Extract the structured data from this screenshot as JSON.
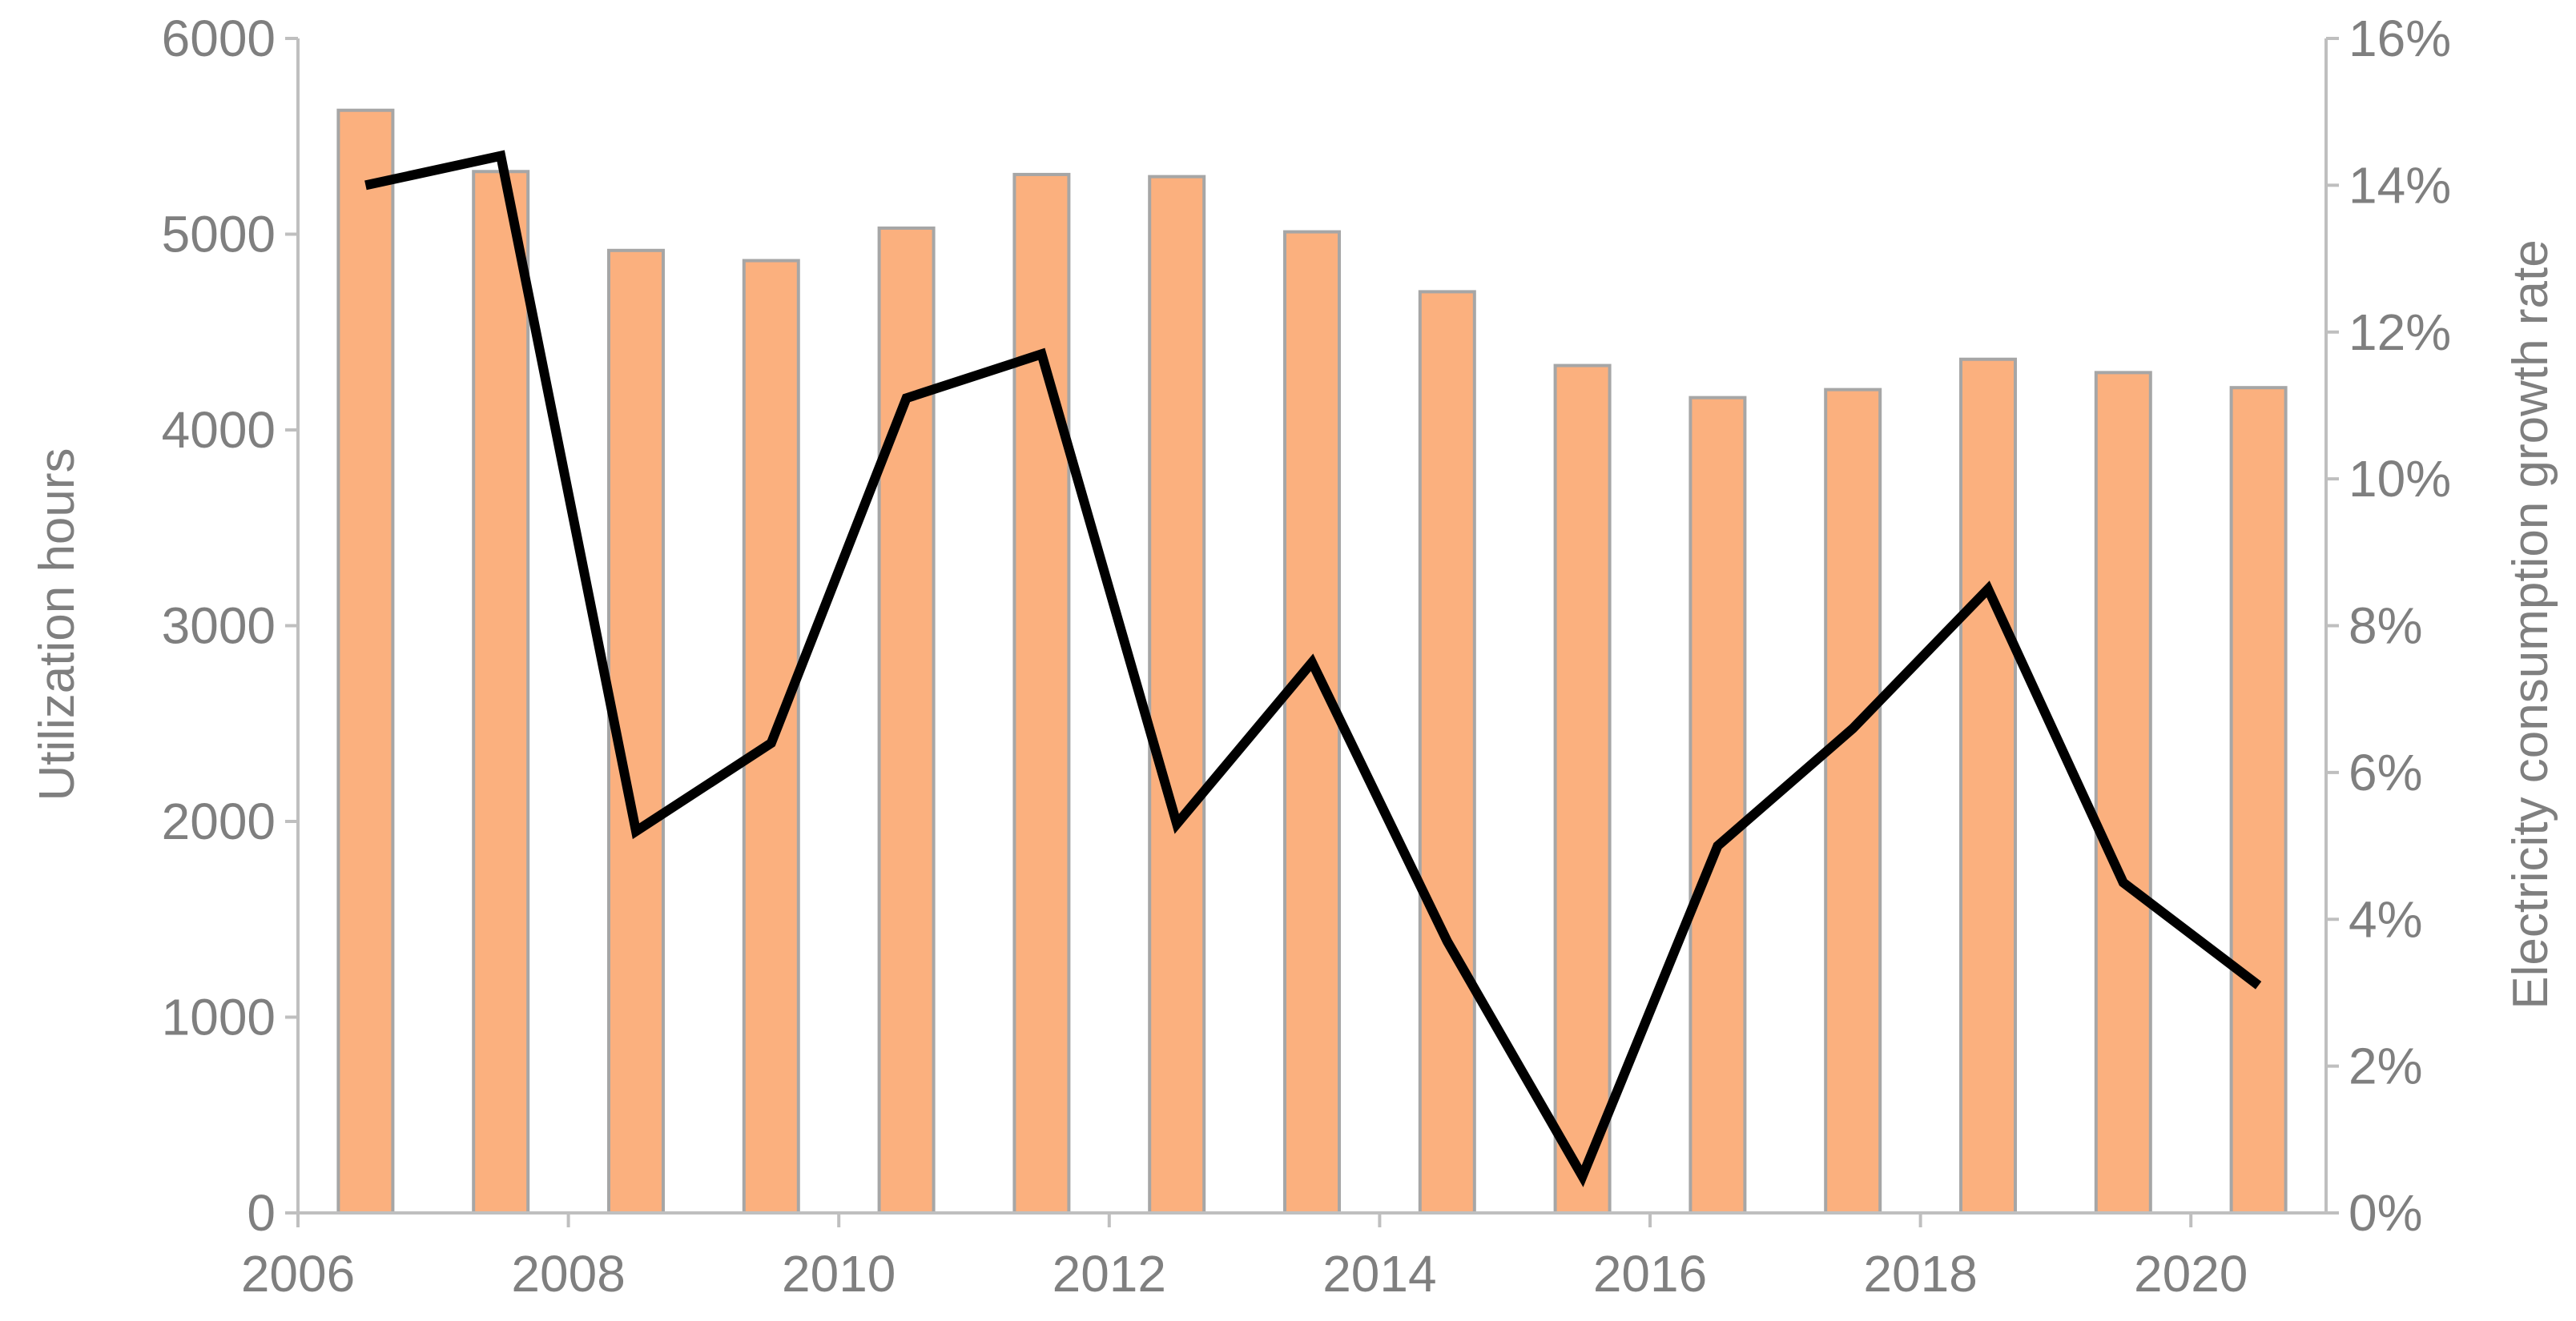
{
  "chart_data": {
    "type": "bar",
    "categories": [
      "2006",
      "2007",
      "2008",
      "2009",
      "2010",
      "2011",
      "2012",
      "2013",
      "2014",
      "2015",
      "2016",
      "2017",
      "2018",
      "2019",
      "2020"
    ],
    "x_tick_labels": [
      "2006",
      "2008",
      "2010",
      "2012",
      "2014",
      "2016",
      "2018",
      "2020"
    ],
    "series": [
      {
        "type": "bar",
        "axis": "left",
        "values": [
          5633,
          5320,
          4917,
          4865,
          5031,
          5305,
          5294,
          5012,
          4706,
          4329,
          4165,
          4206,
          4361,
          4293,
          4216
        ]
      },
      {
        "type": "line",
        "axis": "right",
        "values": [
          14.0,
          14.4,
          5.2,
          6.4,
          11.1,
          11.7,
          5.3,
          7.5,
          3.7,
          0.5,
          5.0,
          6.6,
          8.5,
          4.5,
          3.1
        ]
      }
    ],
    "ylabel_left": "Utilization hours",
    "ylabel_right": "Electricity consumption growth rate",
    "ylim_left": [
      0,
      6000
    ],
    "ylim_right": [
      0,
      16
    ],
    "yticks_left": [
      "0",
      "1000",
      "2000",
      "3000",
      "4000",
      "5000",
      "6000"
    ],
    "yticks_right": [
      "0%",
      "2%",
      "4%",
      "6%",
      "8%",
      "10%",
      "12%",
      "14%",
      "16%"
    ],
    "grid": false,
    "legend": "none",
    "colors": {
      "bar_fill": "#fbb07e",
      "bar_edge": "#a6a6a6",
      "line": "#000000",
      "axis": "#bfbfbf",
      "text": "#7f7f7f"
    }
  }
}
